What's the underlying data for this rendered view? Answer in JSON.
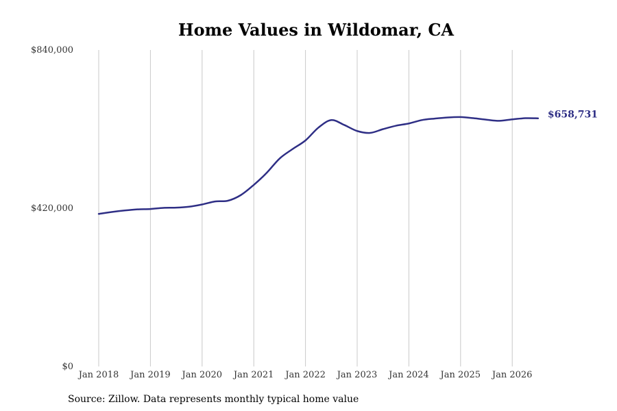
{
  "chart_data": {
    "type": "line",
    "title": "Home Values in Wildomar, CA",
    "xlabel": "",
    "ylabel": "",
    "ylim": [
      0,
      840000
    ],
    "xlim": [
      "2018-01",
      "2026-07"
    ],
    "grid": "vertical-only",
    "line_color": "#2e2e85",
    "y_ticks": [
      {
        "value": 0,
        "label": "$0"
      },
      {
        "value": 420000,
        "label": "$420,000"
      },
      {
        "value": 840000,
        "label": "$840,000"
      }
    ],
    "x_ticks": [
      {
        "value": "2018-01",
        "label": "Jan 2018"
      },
      {
        "value": "2019-01",
        "label": "Jan 2019"
      },
      {
        "value": "2020-01",
        "label": "Jan 2020"
      },
      {
        "value": "2021-01",
        "label": "Jan 2021"
      },
      {
        "value": "2022-01",
        "label": "Jan 2022"
      },
      {
        "value": "2023-01",
        "label": "Jan 2023"
      },
      {
        "value": "2024-01",
        "label": "Jan 2024"
      },
      {
        "value": "2025-01",
        "label": "Jan 2025"
      },
      {
        "value": "2026-01",
        "label": "Jan 2026"
      }
    ],
    "series": [
      {
        "points": [
          {
            "x": "2018-01",
            "y": 405000
          },
          {
            "x": "2018-04",
            "y": 410000
          },
          {
            "x": "2018-07",
            "y": 414000
          },
          {
            "x": "2018-10",
            "y": 417000
          },
          {
            "x": "2019-01",
            "y": 418000
          },
          {
            "x": "2019-04",
            "y": 421000
          },
          {
            "x": "2019-07",
            "y": 421500
          },
          {
            "x": "2019-10",
            "y": 424000
          },
          {
            "x": "2020-01",
            "y": 430000
          },
          {
            "x": "2020-04",
            "y": 438000
          },
          {
            "x": "2020-07",
            "y": 440000
          },
          {
            "x": "2020-10",
            "y": 455000
          },
          {
            "x": "2021-01",
            "y": 482000
          },
          {
            "x": "2021-04",
            "y": 514000
          },
          {
            "x": "2021-07",
            "y": 552000
          },
          {
            "x": "2021-10",
            "y": 577000
          },
          {
            "x": "2022-01",
            "y": 600000
          },
          {
            "x": "2022-04",
            "y": 634000
          },
          {
            "x": "2022-07",
            "y": 654000
          },
          {
            "x": "2022-10",
            "y": 641000
          },
          {
            "x": "2023-01",
            "y": 625000
          },
          {
            "x": "2023-04",
            "y": 620000
          },
          {
            "x": "2023-07",
            "y": 630000
          },
          {
            "x": "2023-10",
            "y": 639000
          },
          {
            "x": "2024-01",
            "y": 645000
          },
          {
            "x": "2024-04",
            "y": 654000
          },
          {
            "x": "2024-07",
            "y": 658000
          },
          {
            "x": "2024-10",
            "y": 661000
          },
          {
            "x": "2025-01",
            "y": 662000
          },
          {
            "x": "2025-04",
            "y": 659000
          },
          {
            "x": "2025-07",
            "y": 655000
          },
          {
            "x": "2025-10",
            "y": 652000
          },
          {
            "x": "2026-01",
            "y": 656000
          },
          {
            "x": "2026-04",
            "y": 659000
          },
          {
            "x": "2026-07",
            "y": 658731
          }
        ]
      }
    ],
    "end_label": "$658,731",
    "source_note": "Source: Zillow. Data represents monthly typical home value"
  }
}
